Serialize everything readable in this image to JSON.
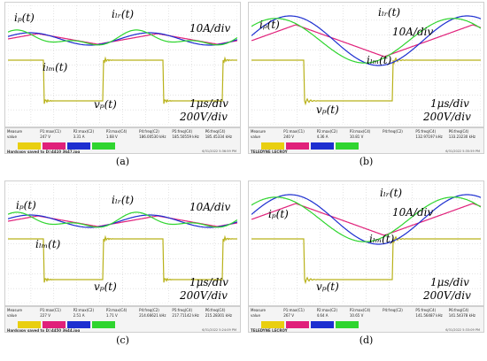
{
  "panels": [
    {
      "caption": "(a)",
      "labels": {
        "ip": "iₚ(t)",
        "ilr": "iₗᵣ(t)",
        "ilm": "iₗₘ(t)",
        "vp": "vₚ(t)",
        "scale_i": "10A/div",
        "scale_t": "1μs/div",
        "scale_v": "200V/div"
      },
      "measure": [
        "Measure",
        "P1:max(C1)",
        "P2:max(C2)",
        "P3:max(C4)",
        "P4:freq(C2)",
        "P5:freq(C4)",
        "P6:freq(C4)"
      ],
      "values": [
        "value",
        "247 V",
        "3.31 A",
        "1.68 V",
        "186.00530 kHz",
        "185.50559 kHz",
        "185.45334 kHz"
      ],
      "brand": "Hardcopy saved to D:\\4410 3647.jpg",
      "stamp": "6/31/2022 5:36:59 PM"
    },
    {
      "caption": "(b)",
      "labels": {
        "ip": "iₚ(t)",
        "ilr": "iₗᵣ(t)",
        "ilm": "iₗₘ(t)",
        "vp": "vₚ(t)",
        "scale_i": "10A/div",
        "scale_t": "1μs/div",
        "scale_v": "200V/div"
      },
      "measure": [
        "Measure",
        "P1:max(C1)",
        "P2:max(C2)",
        "P3:max(C4)",
        "P4:freq(C2)",
        "P5:freq(C4)",
        "P6:freq(C4)"
      ],
      "values": [
        "value",
        "240 V",
        "4.36 A",
        "10.81 V",
        "",
        "132.97197 kHz",
        "133.23230 kHz"
      ],
      "brand": "TELEDYNE LECROY",
      "stamp": "6/31/2022 5:35:59 PM"
    },
    {
      "caption": "(c)",
      "labels": {
        "ip": "iₚ(t)",
        "ilr": "iₗᵣ(t)",
        "ilm": "iₗₘ(t)",
        "vp": "vₚ(t)",
        "scale_i": "10A/div",
        "scale_t": "1μs/div",
        "scale_v": "200V/div"
      },
      "measure": [
        "Measure",
        "P1:max(C1)",
        "P2:max(C2)",
        "P3:max(C4)",
        "P4:freq(C2)",
        "P5:freq(C4)",
        "P6:freq(C4)"
      ],
      "values": [
        "value",
        "227 V",
        "2.51 A",
        "1.71 V",
        "214.66621 kHz",
        "217.71142 kHz",
        "215.28301 kHz"
      ],
      "brand": "Hardcopy saved to D:\\4450 3644.jpg",
      "stamp": "6/31/2022 5:24:09 PM"
    },
    {
      "caption": "(d)",
      "labels": {
        "ip": "iₚ(t)",
        "ilr": "iₗᵣ(t)",
        "ilm": "iₗₘ(t)",
        "vp": "vₚ(t)",
        "scale_i": "10A/div",
        "scale_t": "1μs/div",
        "scale_v": "200V/div"
      },
      "measure": [
        "Measure",
        "P1:max(C1)",
        "P2:max(C2)",
        "P3:max(C4)",
        "P4:freq(C2)",
        "P5:freq(C4)",
        "P6:freq(C4)"
      ],
      "values": [
        "value",
        "267 V",
        "4.64 A",
        "10.65 V",
        "",
        "141.56487 kHz",
        "141.54378 kHz"
      ],
      "brand": "TELEDYNE LECROY",
      "stamp": "6/31/2022 5:33:09 PM"
    }
  ],
  "colors": {
    "grid": "#c9c9c9",
    "ip": "#2fd52f",
    "ilr": "#1d2fd0",
    "ilm": "#e0207a",
    "vp": "#b9b21a"
  }
}
